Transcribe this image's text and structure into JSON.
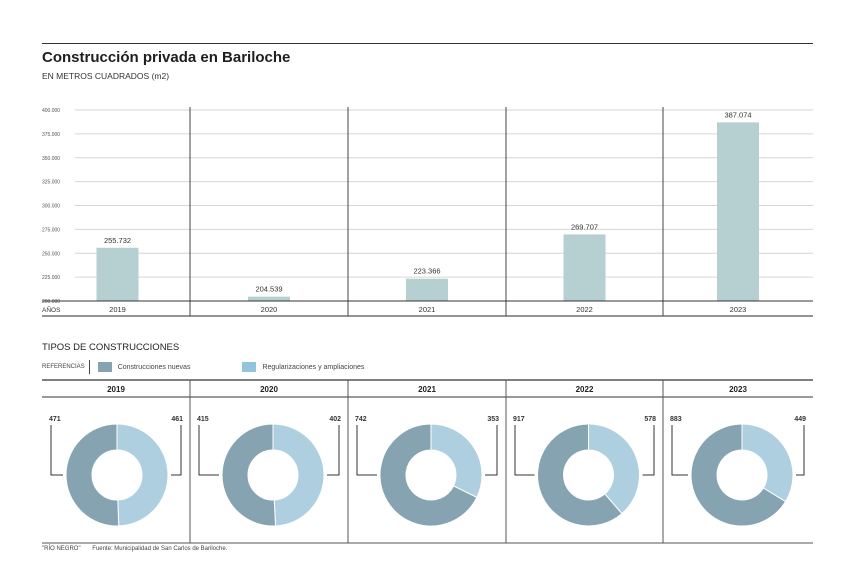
{
  "header": {
    "title": "Construcción privada en Bariloche",
    "subtitle": "EN METROS CUADRADOS (m2)"
  },
  "chart_data": [
    {
      "type": "bar",
      "title": "Construcción privada en Bariloche",
      "subtitle": "EN METROS CUADRADOS (m2)",
      "xlabel": "AÑOS",
      "ylabel": "",
      "categories": [
        "2019",
        "2020",
        "2021",
        "2022",
        "2023"
      ],
      "values": [
        255732,
        204539,
        223366,
        269707,
        387074
      ],
      "value_labels": [
        "255.732",
        "204.539",
        "223.366",
        "269.707",
        "387.074"
      ],
      "ylim": [
        200000,
        400000
      ],
      "yticks": [
        200000,
        225000,
        250000,
        275000,
        300000,
        325000,
        350000,
        375000,
        400000
      ],
      "ytick_labels": [
        "200.000",
        "225.000",
        "250.000",
        "275.000",
        "300.000",
        "325.000",
        "350.000",
        "375.000",
        "400.000"
      ],
      "grid": true,
      "bar_color": "#b6cfd0"
    },
    {
      "type": "pie",
      "variant": "donut-small-multiples",
      "title": "TIPOS DE CONSTRUCCIONES",
      "legend_label": "REFERENCIAS",
      "legend_position": "top-left",
      "series_names": [
        "Construcciones nuevas",
        "Regularizaciones y ampliaciones"
      ],
      "colors": [
        "#86a3b1",
        "#aecfe0"
      ],
      "legend_colors": [
        "#86a3b1",
        "#93c4de"
      ],
      "panels": [
        {
          "year": "2019",
          "values": [
            471,
            461
          ]
        },
        {
          "year": "2020",
          "values": [
            415,
            402
          ]
        },
        {
          "year": "2021",
          "values": [
            742,
            353
          ]
        },
        {
          "year": "2022",
          "values": [
            917,
            578
          ]
        },
        {
          "year": "2023",
          "values": [
            883,
            449
          ]
        }
      ]
    }
  ],
  "footer": {
    "credit": "\"RÍO NEGRO\"",
    "source": "Fuente: Municipalidad de San Carlos de Bariloche."
  }
}
